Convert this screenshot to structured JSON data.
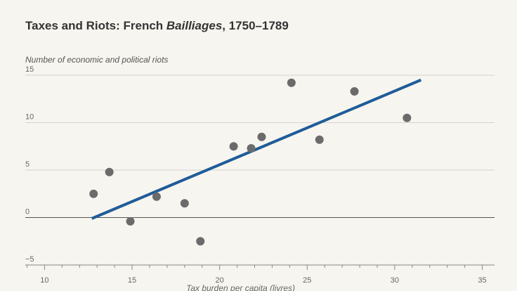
{
  "header": {
    "title_main": "Taxes and Riots: French ",
    "title_italic": "Bailliages",
    "title_tail": ", 1750–1789"
  },
  "chart_data": {
    "type": "scatter",
    "title": "Taxes and Riots: French Bailliages, 1750–1789",
    "ylabel": "Number of economic and political riots",
    "xlabel": "Tax burden per capita (livres)",
    "xlim": [
      8.9,
      35.7
    ],
    "ylim": [
      -5,
      15
    ],
    "x_ticks": [
      10,
      15,
      20,
      25,
      30,
      35
    ],
    "y_ticks": [
      15,
      10,
      5,
      0,
      -5
    ],
    "y_tick_labels": [
      "15",
      "10",
      "5",
      "0",
      "−5"
    ],
    "grid": "horizontal",
    "colors": {
      "points": "#6b6b6b",
      "fit_line": "#1f5c99",
      "grid": "#c8c8c8"
    },
    "points": [
      {
        "x": 12.8,
        "y": 2.5
      },
      {
        "x": 13.7,
        "y": 4.8
      },
      {
        "x": 14.9,
        "y": -0.4
      },
      {
        "x": 16.4,
        "y": 2.2
      },
      {
        "x": 18.0,
        "y": 1.5
      },
      {
        "x": 18.9,
        "y": -2.5
      },
      {
        "x": 20.8,
        "y": 7.5
      },
      {
        "x": 21.8,
        "y": 7.3
      },
      {
        "x": 22.4,
        "y": 8.5
      },
      {
        "x": 24.1,
        "y": 14.2
      },
      {
        "x": 25.7,
        "y": 8.2
      },
      {
        "x": 27.7,
        "y": 13.3
      },
      {
        "x": 30.7,
        "y": 10.5
      }
    ],
    "fit_line": {
      "x": [
        12.7,
        31.5
      ],
      "y": [
        -0.1,
        14.5
      ]
    }
  }
}
